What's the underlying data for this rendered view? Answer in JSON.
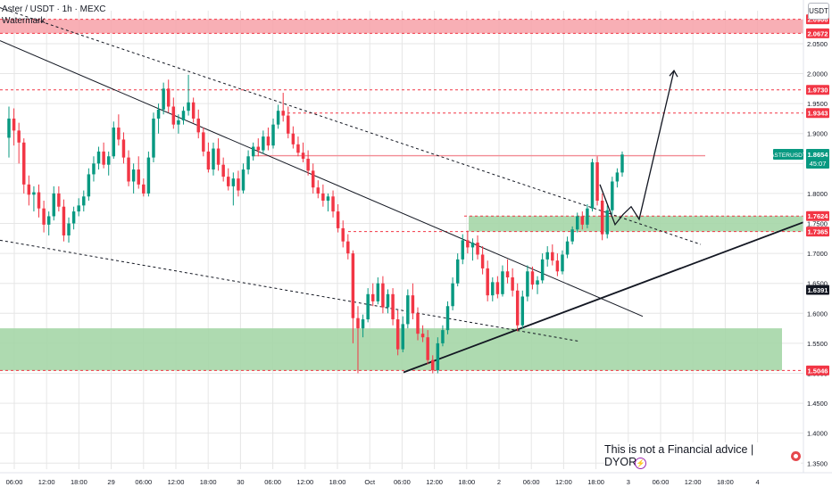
{
  "header": {
    "title": "Aster / USDT · 1h · MEXC",
    "subtitle": "Watermark"
  },
  "currency_button": "USDT",
  "disclaimer": "This is not a Financial advice | DYOR",
  "disclaimer_emoji": "target-emoji",
  "price_axis": {
    "ticks": [
      "2.0500",
      "2.0000",
      "1.9500",
      "1.9000",
      "1.8500",
      "1.8000",
      "1.7500",
      "1.7000",
      "1.6500",
      "1.6000",
      "1.5500",
      "1.5000",
      "1.4500",
      "1.4000",
      "1.3500"
    ],
    "labels": [
      {
        "text": "2.0906",
        "color": "#f23645"
      },
      {
        "text": "2.0672",
        "color": "#f23645"
      },
      {
        "text": "1.9730",
        "color": "#f23645"
      },
      {
        "text": "1.9343",
        "color": "#f23645"
      },
      {
        "text": "1.7624",
        "color": "#f23645"
      },
      {
        "text": "1.7365",
        "color": "#f23645"
      },
      {
        "text": "1.6391",
        "color": "#131722"
      },
      {
        "text": "1.5046",
        "color": "#f23645"
      }
    ],
    "symbol_tag": "ASTERUSDT",
    "last_price": "1.8654",
    "countdown": "45:07",
    "tag_color": "#089981"
  },
  "time_axis": {
    "ticks": [
      "06:00",
      "12:00",
      "18:00",
      "29",
      "06:00",
      "12:00",
      "18:00",
      "30",
      "06:00",
      "12:00",
      "18:00",
      "Oct",
      "06:00",
      "12:00",
      "18:00",
      "2",
      "06:00",
      "12:00",
      "18:00",
      "3",
      "06:00",
      "12:00",
      "18:00",
      "4"
    ]
  },
  "colors": {
    "up": "#089981",
    "down": "#f23645",
    "grid": "#e6e6e6",
    "resistance_zone": "#f7a1a8",
    "support_zone": "#a5d6a7"
  },
  "chart_data": {
    "type": "candlestick",
    "symbol": "ASTERUSDT",
    "exchange": "MEXC",
    "timeframe": "1h",
    "y_range": [
      1.34,
      2.105
    ],
    "candles_ohlc": [
      [
        1.893,
        1.945,
        1.86,
        1.925
      ],
      [
        1.925,
        1.942,
        1.88,
        1.905
      ],
      [
        1.905,
        1.918,
        1.85,
        1.885
      ],
      [
        1.885,
        1.892,
        1.8,
        1.815
      ],
      [
        1.815,
        1.83,
        1.78,
        1.798
      ],
      [
        1.798,
        1.812,
        1.77,
        1.802
      ],
      [
        1.802,
        1.815,
        1.76,
        1.775
      ],
      [
        1.775,
        1.788,
        1.735,
        1.748
      ],
      [
        1.748,
        1.77,
        1.73,
        1.762
      ],
      [
        1.762,
        1.812,
        1.755,
        1.8
      ],
      [
        1.8,
        1.812,
        1.77,
        1.778
      ],
      [
        1.778,
        1.79,
        1.72,
        1.73
      ],
      [
        1.73,
        1.76,
        1.718,
        1.75
      ],
      [
        1.75,
        1.778,
        1.74,
        1.77
      ],
      [
        1.77,
        1.792,
        1.762,
        1.78
      ],
      [
        1.78,
        1.805,
        1.77,
        1.795
      ],
      [
        1.795,
        1.842,
        1.788,
        1.832
      ],
      [
        1.832,
        1.862,
        1.82,
        1.85
      ],
      [
        1.85,
        1.878,
        1.84,
        1.87
      ],
      [
        1.87,
        1.885,
        1.842,
        1.848
      ],
      [
        1.848,
        1.87,
        1.83,
        1.862
      ],
      [
        1.862,
        1.92,
        1.858,
        1.91
      ],
      [
        1.91,
        1.932,
        1.88,
        1.89
      ],
      [
        1.89,
        1.902,
        1.85,
        1.86
      ],
      [
        1.86,
        1.872,
        1.812,
        1.82
      ],
      [
        1.82,
        1.85,
        1.8,
        1.84
      ],
      [
        1.84,
        1.862,
        1.808,
        1.815
      ],
      [
        1.815,
        1.825,
        1.795,
        1.8
      ],
      [
        1.8,
        1.87,
        1.795,
        1.86
      ],
      [
        1.86,
        1.935,
        1.852,
        1.925
      ],
      [
        1.925,
        1.95,
        1.9,
        1.94
      ],
      [
        1.94,
        1.985,
        1.932,
        1.975
      ],
      [
        1.975,
        1.99,
        1.935,
        1.945
      ],
      [
        1.945,
        1.96,
        1.908,
        1.915
      ],
      [
        1.915,
        1.932,
        1.9,
        1.922
      ],
      [
        1.922,
        1.945,
        1.915,
        1.938
      ],
      [
        1.938,
        1.998,
        1.93,
        1.952
      ],
      [
        1.952,
        1.96,
        1.918,
        1.925
      ],
      [
        1.925,
        1.94,
        1.892,
        1.902
      ],
      [
        1.902,
        1.91,
        1.862,
        1.87
      ],
      [
        1.87,
        1.885,
        1.835,
        1.84
      ],
      [
        1.84,
        1.885,
        1.83,
        1.875
      ],
      [
        1.875,
        1.892,
        1.838,
        1.848
      ],
      [
        1.848,
        1.86,
        1.82,
        1.828
      ],
      [
        1.828,
        1.842,
        1.805,
        1.812
      ],
      [
        1.812,
        1.835,
        1.78,
        1.825
      ],
      [
        1.825,
        1.838,
        1.795,
        1.805
      ],
      [
        1.805,
        1.85,
        1.8,
        1.84
      ],
      [
        1.84,
        1.872,
        1.832,
        1.862
      ],
      [
        1.862,
        1.885,
        1.855,
        1.878
      ],
      [
        1.878,
        1.892,
        1.862,
        1.872
      ],
      [
        1.872,
        1.905,
        1.866,
        1.895
      ],
      [
        1.895,
        1.91,
        1.872,
        1.88
      ],
      [
        1.88,
        1.925,
        1.875,
        1.915
      ],
      [
        1.915,
        1.948,
        1.908,
        1.938
      ],
      [
        1.938,
        1.968,
        1.92,
        1.93
      ],
      [
        1.93,
        1.945,
        1.892,
        1.9
      ],
      [
        1.9,
        1.912,
        1.875,
        1.882
      ],
      [
        1.882,
        1.895,
        1.862,
        1.868
      ],
      [
        1.868,
        1.885,
        1.852,
        1.858
      ],
      [
        1.858,
        1.872,
        1.83,
        1.838
      ],
      [
        1.838,
        1.85,
        1.8,
        1.81
      ],
      [
        1.81,
        1.822,
        1.792,
        1.8
      ],
      [
        1.8,
        1.815,
        1.778,
        1.788
      ],
      [
        1.788,
        1.8,
        1.77,
        1.795
      ],
      [
        1.795,
        1.805,
        1.76,
        1.77
      ],
      [
        1.77,
        1.782,
        1.735,
        1.742
      ],
      [
        1.742,
        1.755,
        1.71,
        1.72
      ],
      [
        1.72,
        1.732,
        1.69,
        1.7
      ],
      [
        1.7,
        1.705,
        1.55,
        1.592
      ],
      [
        1.592,
        1.612,
        1.5,
        1.575
      ],
      [
        1.575,
        1.598,
        1.56,
        1.59
      ],
      [
        1.59,
        1.642,
        1.585,
        1.632
      ],
      [
        1.632,
        1.65,
        1.612,
        1.62
      ],
      [
        1.62,
        1.66,
        1.615,
        1.65
      ],
      [
        1.65,
        1.662,
        1.6,
        1.61
      ],
      [
        1.61,
        1.64,
        1.6,
        1.632
      ],
      [
        1.632,
        1.642,
        1.58,
        1.59
      ],
      [
        1.59,
        1.605,
        1.53,
        1.54
      ],
      [
        1.54,
        1.595,
        1.535,
        1.582
      ],
      [
        1.582,
        1.64,
        1.575,
        1.63
      ],
      [
        1.63,
        1.65,
        1.59,
        1.6
      ],
      [
        1.6,
        1.61,
        1.555,
        1.566
      ],
      [
        1.566,
        1.58,
        1.552,
        1.56
      ],
      [
        1.56,
        1.572,
        1.515,
        1.522
      ],
      [
        1.522,
        1.53,
        1.5,
        1.505
      ],
      [
        1.505,
        1.56,
        1.5,
        1.55
      ],
      [
        1.55,
        1.58,
        1.545,
        1.572
      ],
      [
        1.572,
        1.62,
        1.565,
        1.612
      ],
      [
        1.612,
        1.66,
        1.605,
        1.65
      ],
      [
        1.65,
        1.7,
        1.645,
        1.69
      ],
      [
        1.69,
        1.732,
        1.682,
        1.722
      ],
      [
        1.722,
        1.738,
        1.7,
        1.71
      ],
      [
        1.71,
        1.725,
        1.688,
        1.718
      ],
      [
        1.718,
        1.73,
        1.69,
        1.698
      ],
      [
        1.698,
        1.712,
        1.665,
        1.675
      ],
      [
        1.675,
        1.688,
        1.62,
        1.63
      ],
      [
        1.63,
        1.66,
        1.62,
        1.652
      ],
      [
        1.652,
        1.662,
        1.625,
        1.632
      ],
      [
        1.632,
        1.68,
        1.628,
        1.67
      ],
      [
        1.67,
        1.69,
        1.65,
        1.66
      ],
      [
        1.66,
        1.675,
        1.628,
        1.638
      ],
      [
        1.638,
        1.65,
        1.57,
        1.58
      ],
      [
        1.58,
        1.638,
        1.575,
        1.628
      ],
      [
        1.628,
        1.68,
        1.62,
        1.67
      ],
      [
        1.67,
        1.678,
        1.64,
        1.648
      ],
      [
        1.648,
        1.662,
        1.632,
        1.655
      ],
      [
        1.655,
        1.7,
        1.65,
        1.69
      ],
      [
        1.69,
        1.712,
        1.678,
        1.702
      ],
      [
        1.702,
        1.715,
        1.68,
        1.688
      ],
      [
        1.688,
        1.7,
        1.662,
        1.67
      ],
      [
        1.67,
        1.705,
        1.665,
        1.698
      ],
      [
        1.698,
        1.728,
        1.692,
        1.72
      ],
      [
        1.72,
        1.745,
        1.715,
        1.74
      ],
      [
        1.74,
        1.768,
        1.735,
        1.762
      ],
      [
        1.762,
        1.77,
        1.74,
        1.748
      ],
      [
        1.748,
        1.782,
        1.742,
        1.775
      ],
      [
        1.775,
        1.858,
        1.77,
        1.852
      ],
      [
        1.852,
        1.862,
        1.78,
        1.788
      ],
      [
        1.788,
        1.8,
        1.722,
        1.732
      ],
      [
        1.732,
        1.78,
        1.725,
        1.772
      ],
      [
        1.772,
        1.828,
        1.765,
        1.82
      ],
      [
        1.82,
        1.842,
        1.81,
        1.835
      ],
      [
        1.835,
        1.87,
        1.828,
        1.865
      ]
    ],
    "horizontal_levels": [
      2.0906,
      2.0672,
      1.973,
      1.9343,
      1.8654,
      1.7624,
      1.7365,
      1.6391,
      1.5046
    ],
    "zones": [
      {
        "type": "resistance",
        "top": 2.0906,
        "bottom": 2.0672
      },
      {
        "type": "support",
        "top": 1.7624,
        "bottom": 1.7365
      },
      {
        "type": "support",
        "top": 1.575,
        "bottom": 1.5046
      }
    ]
  }
}
